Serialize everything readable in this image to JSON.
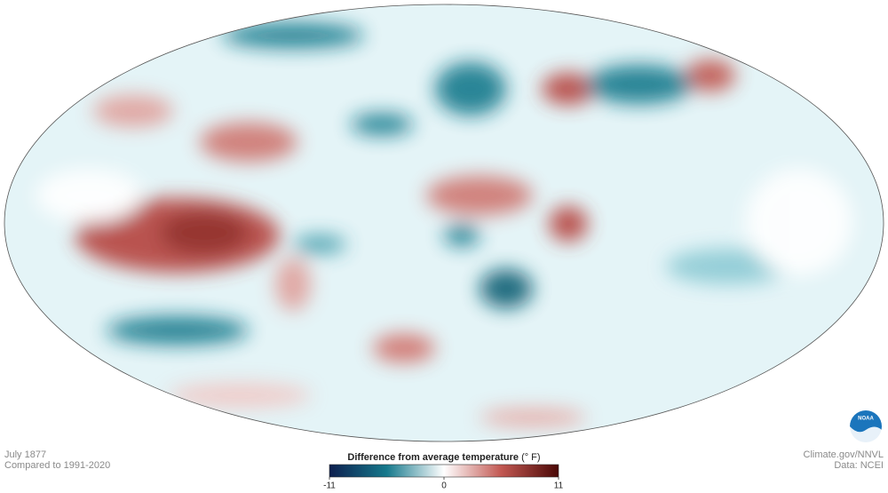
{
  "map": {
    "caption": {
      "period": "July 1877",
      "baseline": "Compared to 1991-2020"
    },
    "legend": {
      "title": "Difference from average temperature",
      "unit": "(° F)",
      "ticks": [
        -11,
        0,
        11
      ]
    },
    "credits": {
      "source": "Climate.gov/NNVL",
      "data": "Data: NCEI"
    },
    "logo": "NOAA"
  }
}
